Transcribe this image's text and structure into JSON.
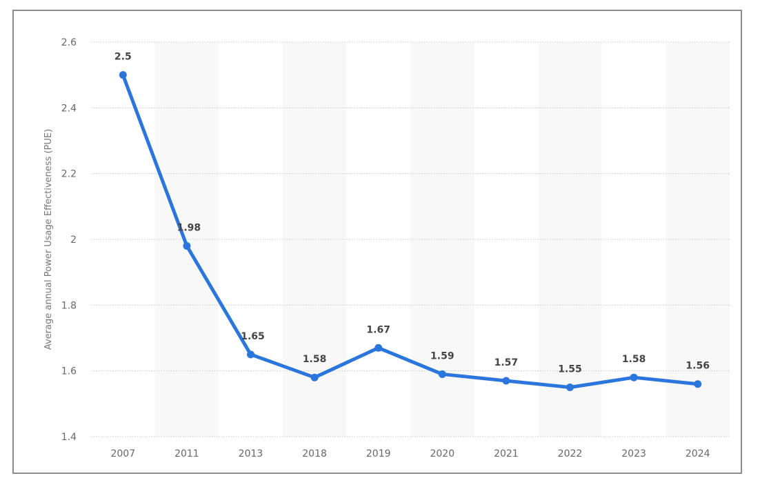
{
  "chart_data": {
    "type": "line",
    "title": "",
    "xlabel": "",
    "ylabel": "Average annual Power Usage Effectiveness (PUE)",
    "categories": [
      "2007",
      "2011",
      "2013",
      "2018",
      "2019",
      "2020",
      "2021",
      "2022",
      "2023",
      "2024"
    ],
    "series": [
      {
        "name": "PUE",
        "values": [
          2.5,
          1.98,
          1.65,
          1.58,
          1.67,
          1.59,
          1.57,
          1.55,
          1.58,
          1.56
        ],
        "color": "#2a76dd"
      }
    ],
    "data_labels": [
      "2.5",
      "1.98",
      "1.65",
      "1.58",
      "1.67",
      "1.59",
      "1.57",
      "1.55",
      "1.58",
      "1.56"
    ],
    "ylim": [
      1.4,
      2.6
    ],
    "yticks": [
      1.4,
      1.6,
      1.8,
      2,
      2.2,
      2.4,
      2.6
    ],
    "ytick_labels": [
      "1.4",
      "1.6",
      "1.8",
      "2",
      "2.2",
      "2.4",
      "2.6"
    ],
    "grid": true,
    "legend": "none"
  }
}
